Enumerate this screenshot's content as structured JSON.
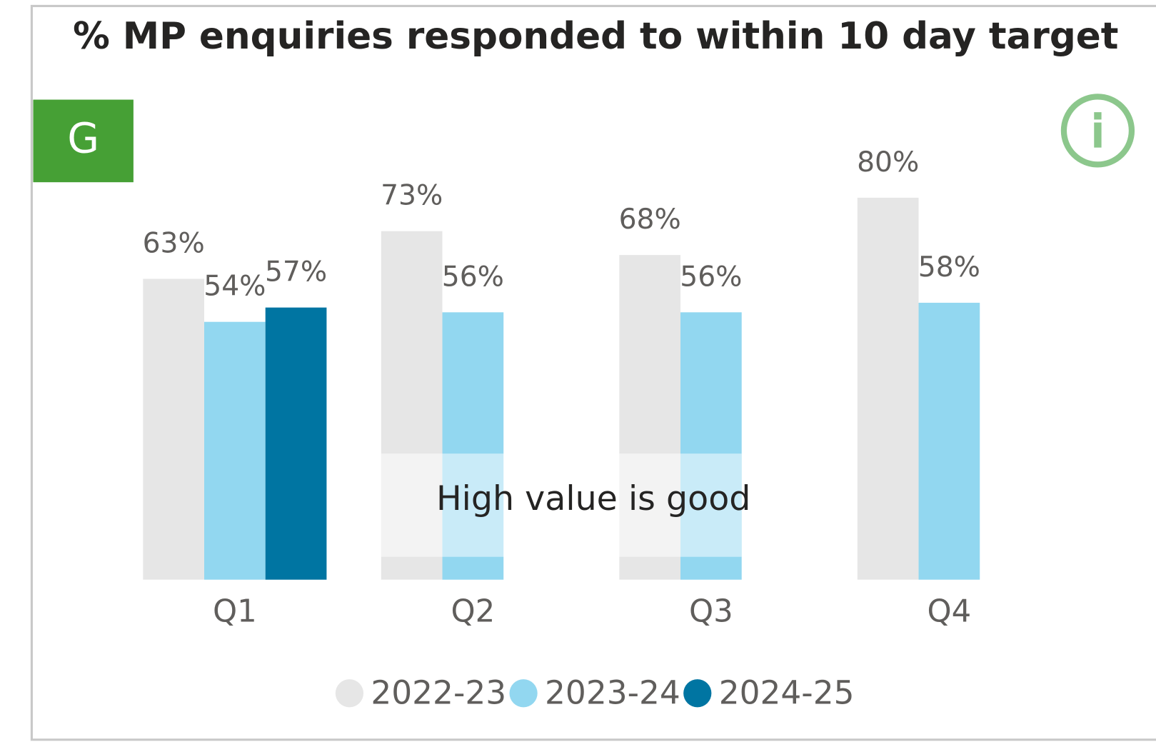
{
  "chart_data": {
    "type": "bar",
    "title": "% MP enquiries responded to within 10 day target",
    "status": "G",
    "annotation": "High value is good",
    "categories": [
      "Q1",
      "Q2",
      "Q3",
      "Q4"
    ],
    "series": [
      {
        "name": "2022-23",
        "color": "#e6e6e6",
        "values": [
          63,
          73,
          68,
          80
        ],
        "value_labels": [
          "63%",
          "73%",
          "68%",
          "80%"
        ]
      },
      {
        "name": "2023-24",
        "color": "#92d7f0",
        "values": [
          54,
          56,
          56,
          58
        ],
        "value_labels": [
          "54%",
          "56%",
          "56%",
          "58%"
        ]
      },
      {
        "name": "2024-25",
        "color": "#0075a2",
        "values": [
          57,
          null,
          null,
          null
        ],
        "value_labels": [
          "57%",
          null,
          null,
          null
        ]
      }
    ]
  }
}
